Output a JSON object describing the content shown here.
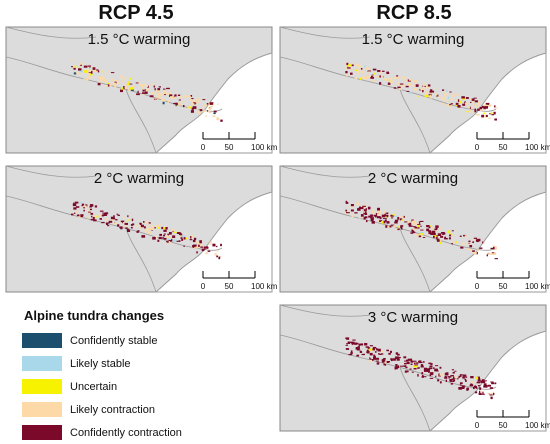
{
  "columns": [
    "RCP 4.5",
    "RCP 8.5"
  ],
  "panels": [
    {
      "label": "1.5 °C warming",
      "scenario": "RCP 4.5",
      "scale": [
        "0",
        "50",
        "100 km"
      ]
    },
    {
      "label": "1.5 °C warming",
      "scenario": "RCP 8.5",
      "scale": [
        "0",
        "50",
        "100 km"
      ]
    },
    {
      "label": "2 °C warming",
      "scenario": "RCP 4.5",
      "scale": [
        "0",
        "50",
        "100 km"
      ]
    },
    {
      "label": "2 °C warming",
      "scenario": "RCP 8.5",
      "scale": [
        "0",
        "50",
        "100 km"
      ]
    },
    {
      "label": "3 °C warming",
      "scenario": "RCP 8.5",
      "scale": [
        "0",
        "50",
        "100 km"
      ]
    }
  ],
  "legend": {
    "title": "Alpine tundra changes",
    "items": [
      {
        "label": "Confidently stable",
        "color": "#1c4e6e"
      },
      {
        "label": "Likely stable",
        "color": "#a9d8ea"
      },
      {
        "label": "Uncertain",
        "color": "#f7f200"
      },
      {
        "label": "Likely contraction",
        "color": "#fcd9a6"
      },
      {
        "label": "Confidently contraction",
        "color": "#7b0a2a"
      }
    ]
  },
  "colors": {
    "land": "#dcdcdc",
    "sea": "#ffffff",
    "border": "#9a9a9a"
  }
}
